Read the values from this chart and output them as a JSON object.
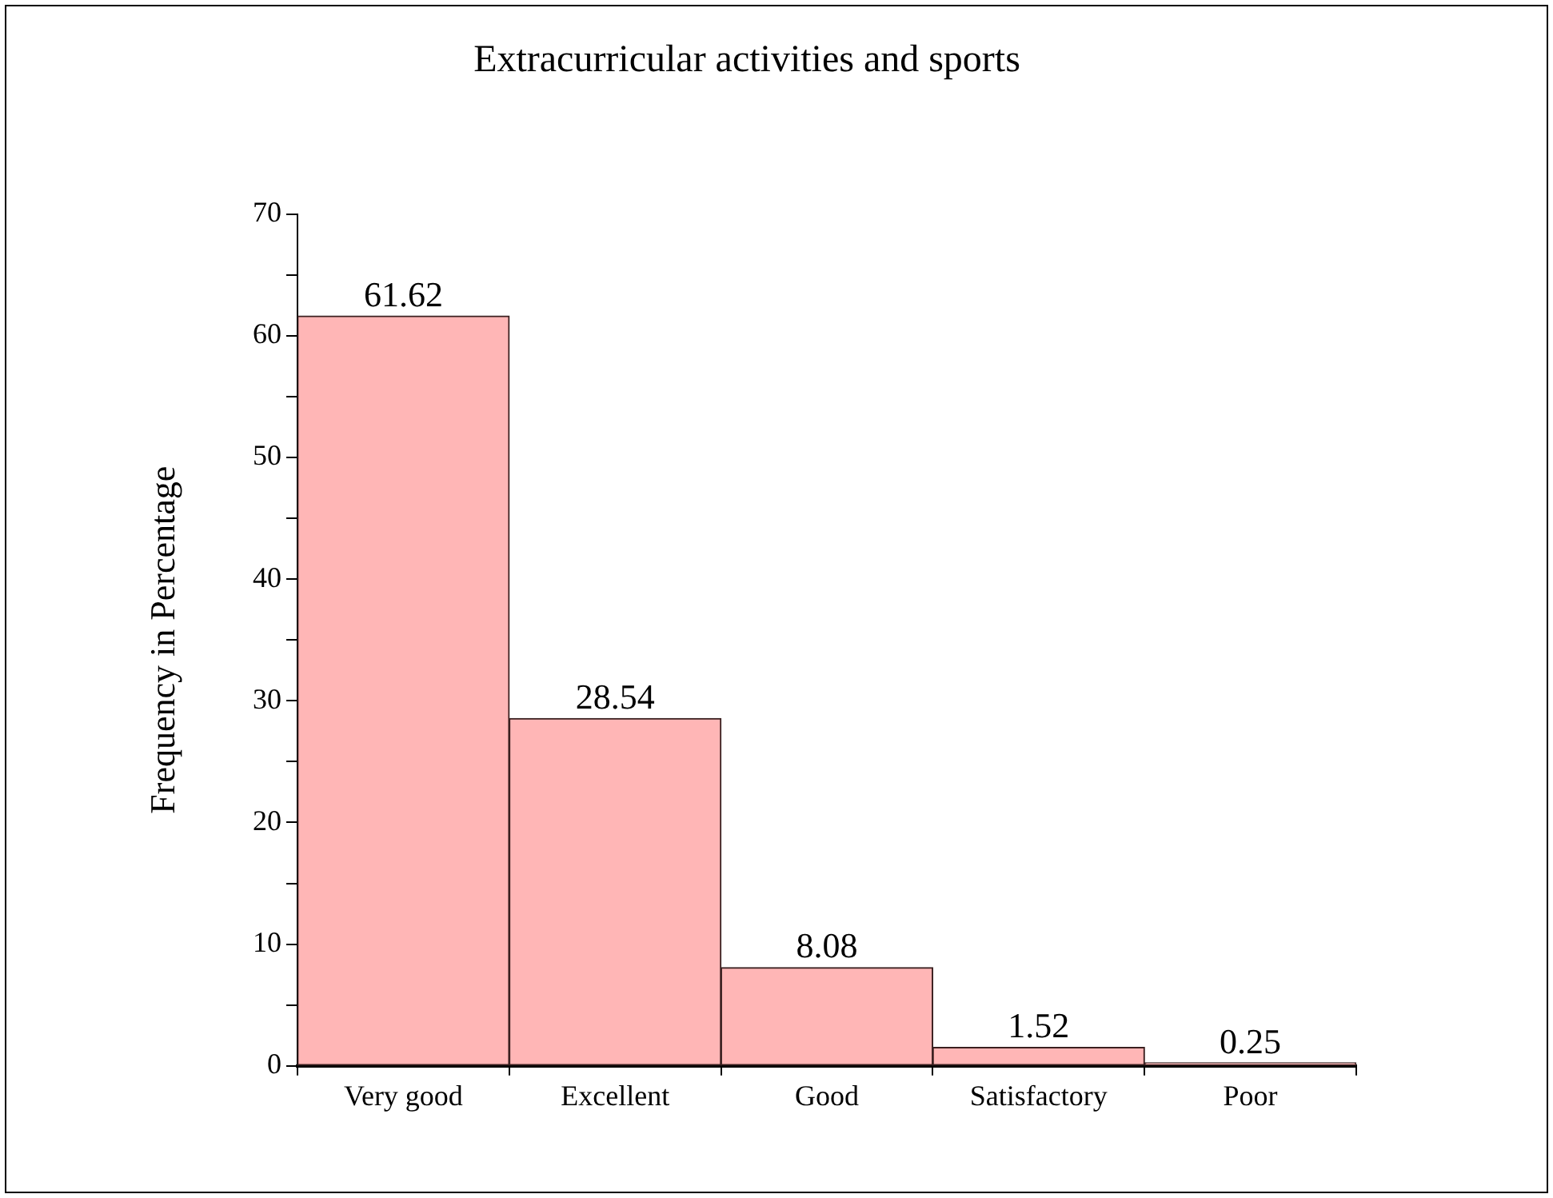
{
  "chart_data": {
    "type": "bar",
    "title": "Extracurricular activities and sports",
    "ylabel": "Frequency in Percentage",
    "categories": [
      "Very good",
      "Excellent",
      "Good",
      "Satisfactory",
      "Poor"
    ],
    "values": [
      61.62,
      28.54,
      8.08,
      1.52,
      0.25
    ],
    "color": "#ffb6b6",
    "ylim": [
      0,
      70
    ],
    "yticks": [
      0,
      {
        "value": 5,
        "label": null
      },
      10,
      {
        "value": 15,
        "label": null
      },
      20,
      {
        "value": 25,
        "label": null
      },
      30,
      {
        "value": 35,
        "label": null
      },
      40,
      {
        "value": 45,
        "label": null
      },
      50,
      {
        "value": 55,
        "label": null
      },
      60,
      {
        "value": 65,
        "label": null
      },
      70
    ],
    "data_labels": true,
    "grid": false,
    "legend": false
  }
}
